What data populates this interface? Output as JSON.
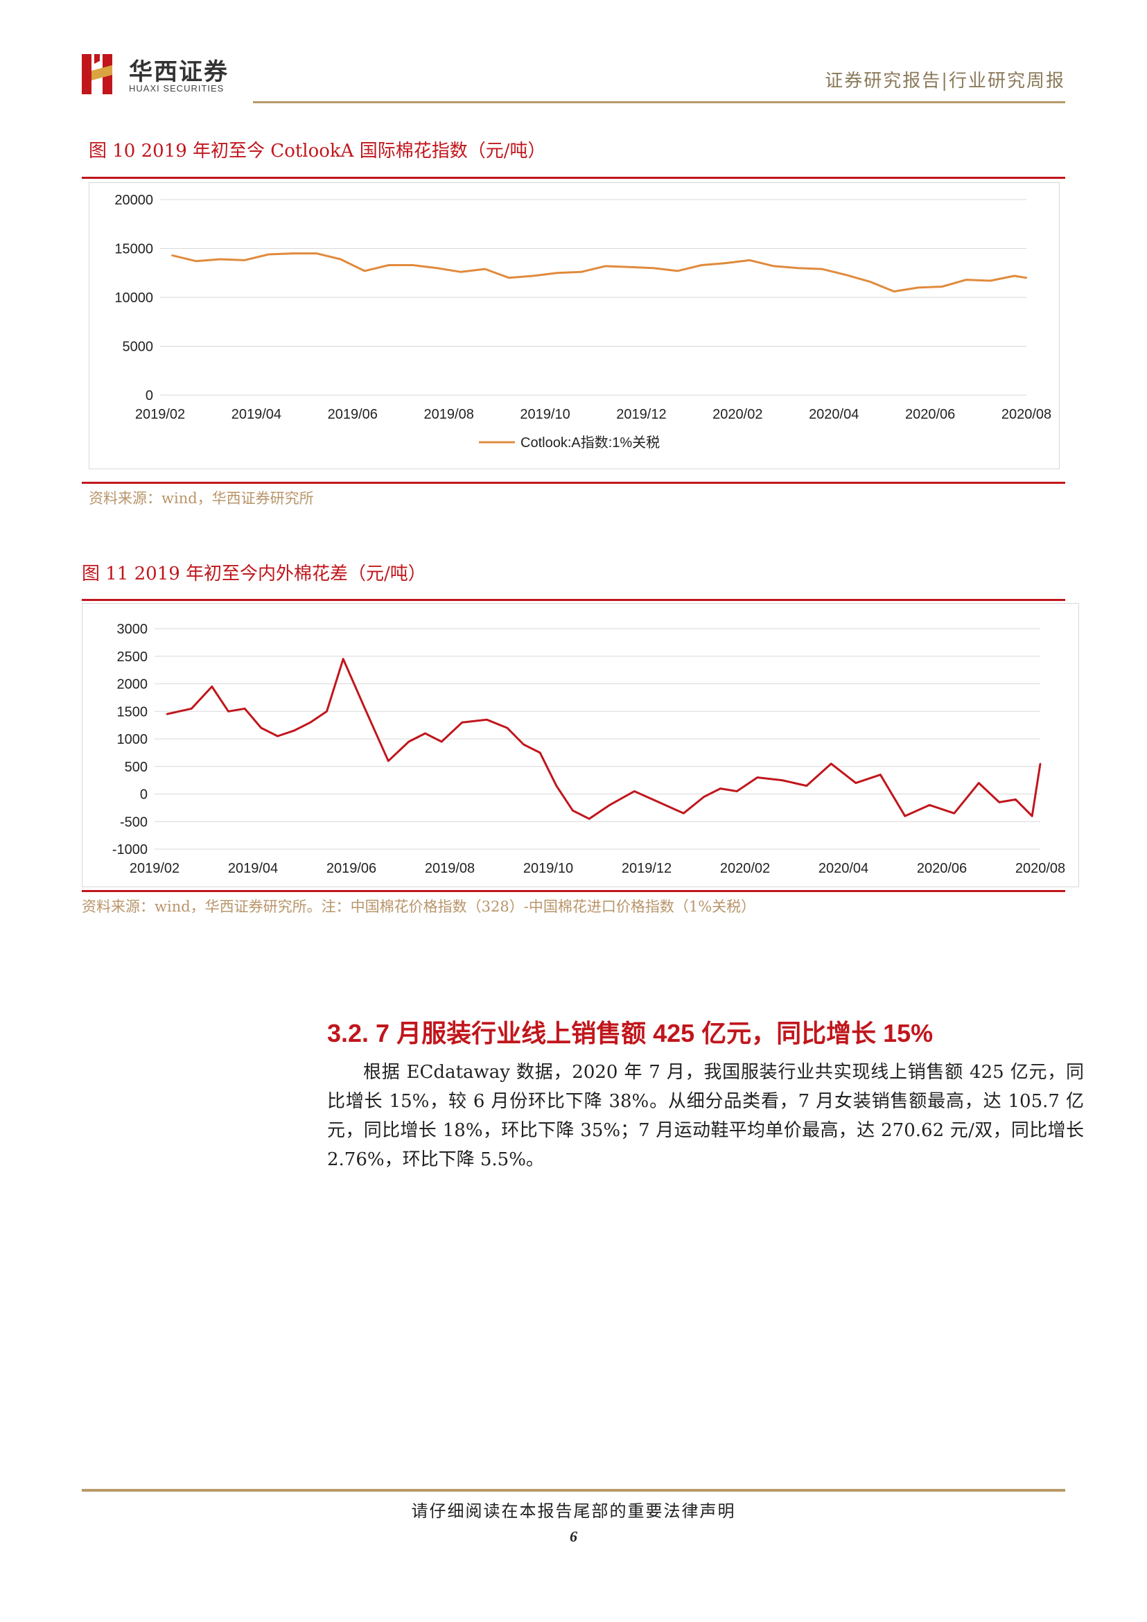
{
  "header": {
    "brand_cn": "华西证券",
    "brand_en": "HUAXI SECURITIES",
    "report_type": "证券研究报告|行业研究周报"
  },
  "figure10": {
    "title": "图 10 2019 年初至今 CotlookA 国际棉花指数（元/吨）",
    "source": "资料来源：wind，华西证券研究所",
    "chart_data": {
      "type": "line",
      "title": "",
      "xlabel": "",
      "ylabel": "",
      "ylim": [
        0,
        20000
      ],
      "yticks": [
        "20000",
        "15000",
        "10000",
        "5000",
        "0"
      ],
      "xticks": [
        "2019/02",
        "2019/04",
        "2019/06",
        "2019/08",
        "2019/10",
        "2019/12",
        "2020/02",
        "2020/04",
        "2020/06",
        "2020/08"
      ],
      "grid": true,
      "legend_position": "bottom",
      "line_color": "#e08a3c",
      "series": [
        {
          "name": "Cotlook:A指数:1%关税",
          "x": [
            "2019/02",
            "2019/02",
            "2019/03",
            "2019/03",
            "2019/04",
            "2019/04",
            "2019/05",
            "2019/05",
            "2019/06",
            "2019/06",
            "2019/07",
            "2019/07",
            "2019/08",
            "2019/08",
            "2019/09",
            "2019/09",
            "2019/10",
            "2019/10",
            "2019/11",
            "2019/11",
            "2019/12",
            "2019/12",
            "2020/01",
            "2020/01",
            "2020/02",
            "2020/02",
            "2020/03",
            "2020/03",
            "2020/04",
            "2020/04",
            "2020/05",
            "2020/05",
            "2020/06",
            "2020/06",
            "2020/07",
            "2020/07",
            "2020/08"
          ],
          "values": [
            14300,
            13700,
            13900,
            13800,
            14400,
            14500,
            14500,
            13900,
            12700,
            13300,
            13300,
            13000,
            12600,
            12900,
            12000,
            12200,
            12500,
            12600,
            13200,
            13100,
            13000,
            12700,
            13300,
            13500,
            13800,
            13200,
            13000,
            12900,
            12300,
            11600,
            10600,
            11000,
            11100,
            11800,
            11700,
            12200,
            12000
          ]
        }
      ]
    }
  },
  "figure11": {
    "title": "图 11 2019 年初至今内外棉花差（元/吨）",
    "source": "资料来源：wind，华西证券研究所。注：中国棉花价格指数（328）-中国棉花进口价格指数（1%关税）",
    "chart_data": {
      "type": "line",
      "title": "",
      "xlabel": "",
      "ylabel": "",
      "ylim": [
        -1000,
        3000
      ],
      "yticks": [
        "3000",
        "2500",
        "2000",
        "1500",
        "1000",
        "500",
        "0",
        "-500",
        "-1000"
      ],
      "xticks": [
        "2019/02",
        "2019/04",
        "2019/06",
        "2019/08",
        "2019/10",
        "2019/12",
        "2020/02",
        "2020/04",
        "2020/06",
        "2020/08"
      ],
      "grid": true,
      "line_color": "#c0161c",
      "series": [
        {
          "x": [
            "2019/02",
            "2019/02",
            "2019/03",
            "2019/03",
            "2019/03",
            "2019/04",
            "2019/04",
            "2019/04",
            "2019/05",
            "2019/05",
            "2019/05",
            "2019/06",
            "2019/06",
            "2019/07",
            "2019/07",
            "2019/07",
            "2019/08",
            "2019/08",
            "2019/09",
            "2019/09",
            "2019/09",
            "2019/10",
            "2019/10",
            "2019/10",
            "2019/11",
            "2019/11",
            "2019/12",
            "2019/12",
            "2020/01",
            "2020/01",
            "2020/01",
            "2020/02",
            "2020/02",
            "2020/03",
            "2020/03",
            "2020/04",
            "2020/04",
            "2020/05",
            "2020/05",
            "2020/06",
            "2020/06",
            "2020/07",
            "2020/07",
            "2020/07",
            "2020/08"
          ],
          "values": [
            1450,
            1550,
            1950,
            1500,
            1550,
            1200,
            1050,
            1150,
            1300,
            1500,
            2450,
            1600,
            600,
            950,
            1100,
            950,
            1300,
            1350,
            1200,
            900,
            750,
            150,
            -300,
            -450,
            -200,
            50,
            -150,
            -350,
            -50,
            100,
            50,
            300,
            250,
            150,
            550,
            200,
            350,
            -400,
            -200,
            -350,
            200,
            -150,
            -100,
            -400,
            550
          ]
        }
      ]
    }
  },
  "section": {
    "heading": "3.2. 7 月服装行业线上销售额 425 亿元，同比增长 15%",
    "paragraph": "根据 ECdataway 数据，2020 年 7 月，我国服装行业共实现线上销售额 425 亿元，同比增长 15%，较 6 月份环比下降 38%。从细分品类看，7 月女装销售额最高，达 105.7 亿元，同比增长 18%，环比下降 35%；7 月运动鞋平均单价最高，达 270.62 元/双，同比增长 2.76%，环比下降 5.5%。"
  },
  "footer": {
    "note": "请仔细阅读在本报告尾部的重要法律声明",
    "page_number": "6"
  }
}
